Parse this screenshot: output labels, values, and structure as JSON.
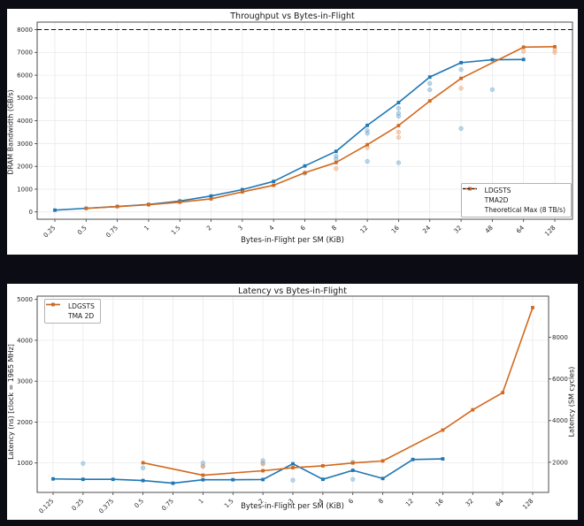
{
  "page": {
    "background": "#0c0c14",
    "panel_background": "#ffffff"
  },
  "chart_data": [
    {
      "type": "line",
      "title": "Throughput vs Bytes-in-Flight",
      "xlabel": "Bytes-in-Flight per SM (KiB)",
      "ylabel": "DRAM Bandwidth (GB/s)",
      "categories": [
        "0.25",
        "0.5",
        "0.75",
        "1",
        "1.5",
        "2",
        "3",
        "4",
        "6",
        "8",
        "12",
        "16",
        "24",
        "32",
        "48",
        "64",
        "128"
      ],
      "ylim": [
        -320,
        8330
      ],
      "yticks": [
        0,
        1000,
        2000,
        3000,
        4000,
        5000,
        6000,
        7000,
        8000
      ],
      "grid": true,
      "hline": {
        "value": 8000,
        "label": "Theoretical Max (8 TB/s)",
        "color": "#111111",
        "style": "dashed"
      },
      "series": [
        {
          "name": "LDGSTS",
          "color": "#1f77b4",
          "points": [
            [
              "0.25",
              80
            ],
            [
              "0.5",
              160
            ],
            [
              "0.75",
              240
            ],
            [
              "1",
              330
            ],
            [
              "1.5",
              480
            ],
            [
              "2",
              700
            ],
            [
              "3",
              980
            ],
            [
              "4",
              1340
            ],
            [
              "6",
              2020
            ],
            [
              "8",
              2660
            ],
            [
              "12",
              3800
            ],
            [
              "16",
              4800
            ],
            [
              "24",
              5920
            ],
            [
              "32",
              6550
            ],
            [
              "48",
              6680
            ],
            [
              "64",
              6690
            ]
          ]
        },
        {
          "name": "TMA2D",
          "color": "#d2691e",
          "points": [
            [
              "0.5",
              155
            ],
            [
              "0.75",
              235
            ],
            [
              "1",
              315
            ],
            [
              "1.5",
              430
            ],
            [
              "2",
              575
            ],
            [
              "3",
              880
            ],
            [
              "4",
              1170
            ],
            [
              "6",
              1720
            ],
            [
              "8",
              2170
            ],
            [
              "12",
              2950
            ],
            [
              "16",
              3790
            ],
            [
              "24",
              4870
            ],
            [
              "32",
              5860
            ],
            [
              "64",
              7230
            ],
            [
              "128",
              7250
            ]
          ]
        }
      ],
      "scatter": [
        {
          "name": "ldgsts-samples",
          "color": "#6ea8cf",
          "points": [
            [
              "6",
              1700
            ],
            [
              "8",
              2320
            ],
            [
              "8",
              2450
            ],
            [
              "12",
              2220
            ],
            [
              "12",
              3450
            ],
            [
              "12",
              3570
            ],
            [
              "16",
              2160
            ],
            [
              "16",
              4200
            ],
            [
              "16",
              4330
            ],
            [
              "16",
              4550
            ],
            [
              "24",
              5360
            ],
            [
              "24",
              5640
            ],
            [
              "32",
              3660
            ],
            [
              "32",
              6250
            ],
            [
              "48",
              5370
            ]
          ]
        },
        {
          "name": "tma2d-samples",
          "color": "#eba06a",
          "points": [
            [
              "8",
              1900
            ],
            [
              "12",
              2820
            ],
            [
              "16",
              3270
            ],
            [
              "16",
              3500
            ],
            [
              "32",
              5430
            ],
            [
              "64",
              7050
            ],
            [
              "128",
              7000
            ],
            [
              "128",
              7120
            ]
          ]
        }
      ],
      "legend": {
        "position": "bottom-right",
        "items": [
          {
            "label": "LDGSTS",
            "color": "#1f77b4",
            "dash": false
          },
          {
            "label": "TMA2D",
            "color": "#d2691e",
            "dash": false
          },
          {
            "label": "Theoretical Max (8 TB/s)",
            "color": "#111111",
            "dash": true
          }
        ]
      }
    },
    {
      "type": "line",
      "title": "Latency vs Bytes-in-Flight",
      "xlabel": "Bytes-in-Flight per SM (KiB)",
      "ylabel": "Latency (ns)  [clock = 1965 MHz]",
      "categories": [
        "0.125",
        "0.25",
        "0.375",
        "0.5",
        "0.75",
        "1",
        "1.5",
        "2",
        "3",
        "4",
        "6",
        "8",
        "12",
        "16",
        "32",
        "64",
        "128"
      ],
      "ylim": [
        280,
        5080
      ],
      "yticks": [
        1000,
        2000,
        3000,
        4000,
        5000
      ],
      "grid": true,
      "right_axis": {
        "label": "Latency (SM cycles)",
        "ticks": [
          2000,
          4000,
          6000,
          8000
        ],
        "cycles_per_ns": 1.965
      },
      "series": [
        {
          "name": "LDGSTS",
          "color": "#1f77b4",
          "points": [
            [
              "0.125",
              610
            ],
            [
              "0.25",
              600
            ],
            [
              "0.375",
              600
            ],
            [
              "0.5",
              570
            ],
            [
              "0.75",
              505
            ],
            [
              "1",
              590
            ],
            [
              "1.5",
              590
            ],
            [
              "2",
              595
            ],
            [
              "3",
              980
            ],
            [
              "4",
              600
            ],
            [
              "6",
              820
            ],
            [
              "8",
              620
            ],
            [
              "12",
              1085
            ],
            [
              "16",
              1100
            ]
          ]
        },
        {
          "name": "TMA 2D",
          "color": "#d2691e",
          "points": [
            [
              "0.5",
              1005
            ],
            [
              "1",
              700
            ],
            [
              "2",
              810
            ],
            [
              "3",
              885
            ],
            [
              "4",
              930
            ],
            [
              "6",
              1000
            ],
            [
              "8",
              1050
            ],
            [
              "16",
              1805
            ],
            [
              "32",
              2300
            ],
            [
              "64",
              2720
            ],
            [
              "128",
              4800
            ]
          ]
        }
      ],
      "scatter": [
        {
          "name": "ldgsts-samples",
          "color": "#6ea8cf",
          "points": [
            [
              "0.25",
              990
            ],
            [
              "0.5",
              880
            ],
            [
              "1",
              925
            ],
            [
              "1",
              1000
            ],
            [
              "2",
              995
            ],
            [
              "2",
              1060
            ],
            [
              "3",
              580
            ],
            [
              "6",
              600
            ],
            [
              "6",
              1020
            ]
          ]
        },
        {
          "name": "tma2d-samples",
          "color": "#eba06a",
          "points": [
            [
              "1",
              915
            ],
            [
              "2",
              975
            ]
          ]
        }
      ],
      "legend": {
        "position": "top-left",
        "items": [
          {
            "label": "LDGSTS",
            "color": "#1f77b4",
            "dash": false
          },
          {
            "label": "TMA 2D",
            "color": "#d2691e",
            "dash": false
          }
        ]
      }
    }
  ]
}
